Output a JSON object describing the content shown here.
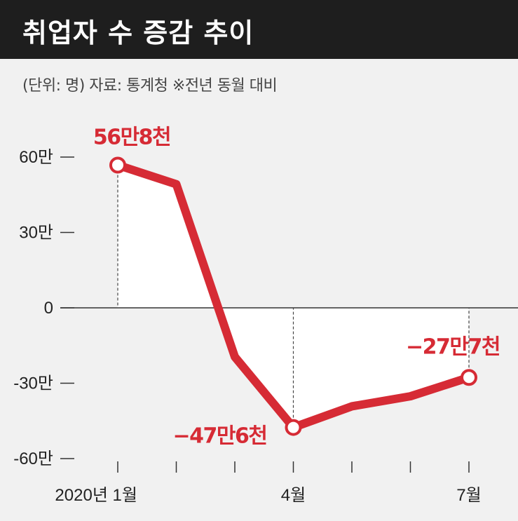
{
  "header": {
    "title": "취업자 수 증감 추이"
  },
  "subtitle": "(단위: 명) 자료: 통계청 ※전년 동월 대비",
  "chart_data": {
    "type": "line",
    "title": "취업자 수 증감 추이",
    "unit": "명",
    "source": "통계청",
    "note": "전년 동월 대비",
    "x": [
      "2020-01",
      "2020-02",
      "2020-03",
      "2020-04",
      "2020-05",
      "2020-06",
      "2020-07"
    ],
    "x_tick_labels": [
      "2020년 1월",
      "",
      "",
      "4월",
      "",
      "",
      "7월"
    ],
    "y_tick_labels": [
      "60만",
      "30만",
      "0",
      "-30만",
      "-60만"
    ],
    "y_ticks": [
      600000,
      300000,
      0,
      -300000,
      -600000
    ],
    "ylim": [
      -600000,
      600000
    ],
    "series": [
      {
        "values": [
          568000,
          492000,
          -195000,
          -476000,
          -392000,
          -352000,
          -277000
        ]
      }
    ],
    "annotations": [
      {
        "index": 0,
        "text": "56만8천"
      },
      {
        "index": 3,
        "text": "−47만6천"
      },
      {
        "index": 6,
        "text": "−27만7천"
      }
    ],
    "colors": {
      "line": "#d62b35",
      "header_bg": "#1e1e1e",
      "background": "#f1f1f1"
    }
  }
}
